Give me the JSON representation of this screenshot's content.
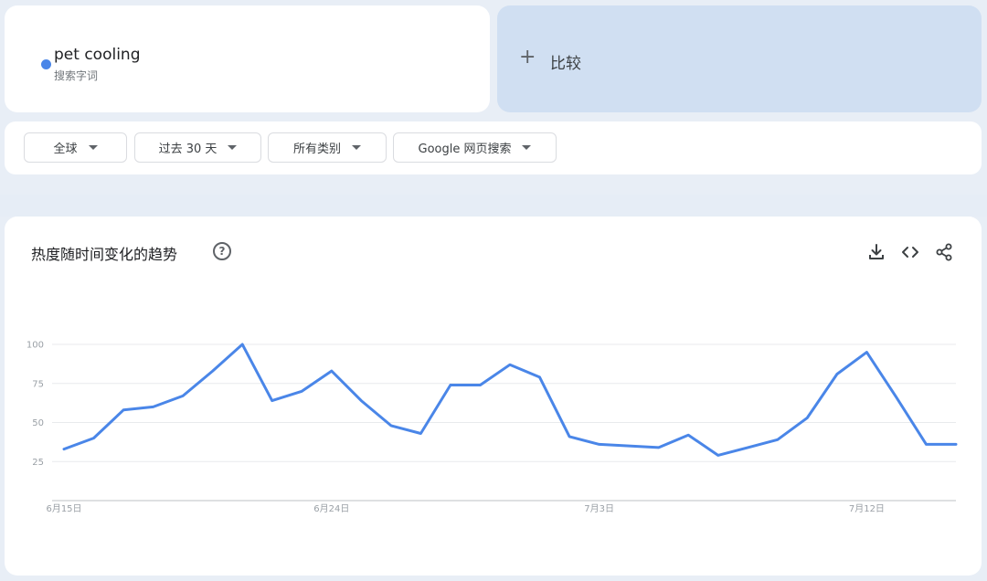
{
  "term": {
    "name": "pet cooling",
    "type": "搜索字词",
    "color": "#4a86e8"
  },
  "compare": {
    "label": "比较",
    "icon": "plus-icon"
  },
  "filters": {
    "region": "全球",
    "time_range": "过去 30 天",
    "category": "所有类别",
    "search_type": "Google 网页搜索"
  },
  "chart_section": {
    "title": "热度随时间变化的趋势",
    "help_icon_glyph": "?",
    "tools": [
      "download-icon",
      "embed-code-icon",
      "share-icon"
    ]
  },
  "chart_data": {
    "type": "line",
    "title": "热度随时间变化的趋势",
    "xlabel": "",
    "ylabel": "",
    "x": [
      "6月15日",
      "6月16日",
      "6月17日",
      "6月18日",
      "6月19日",
      "6月20日",
      "6月21日",
      "6月22日",
      "6月23日",
      "6月24日",
      "6月25日",
      "6月26日",
      "6月27日",
      "6月28日",
      "6月29日",
      "6月30日",
      "7月1日",
      "7月2日",
      "7月3日",
      "7月4日",
      "7月5日",
      "7月6日",
      "7月7日",
      "7月8日",
      "7月9日",
      "7月10日",
      "7月11日",
      "7月12日",
      "7月13日",
      "7月14日",
      "7月15日"
    ],
    "series": [
      {
        "color": "#4a86e8",
        "values": [
          33,
          40,
          58,
          60,
          67,
          83,
          100,
          64,
          70,
          83,
          64,
          48,
          43,
          74,
          74,
          87,
          79,
          41,
          36,
          null,
          34,
          42,
          29,
          34,
          39,
          53,
          81,
          95,
          66,
          36,
          36
        ]
      }
    ],
    "x_tick_labels": [
      "6月15日",
      "6月24日",
      "7月3日",
      "7月12日"
    ],
    "x_tick_indices": [
      0,
      9,
      18,
      27
    ],
    "y_ticks": [
      25,
      50,
      75,
      100
    ],
    "ylim": [
      0,
      100
    ],
    "grid": true
  }
}
